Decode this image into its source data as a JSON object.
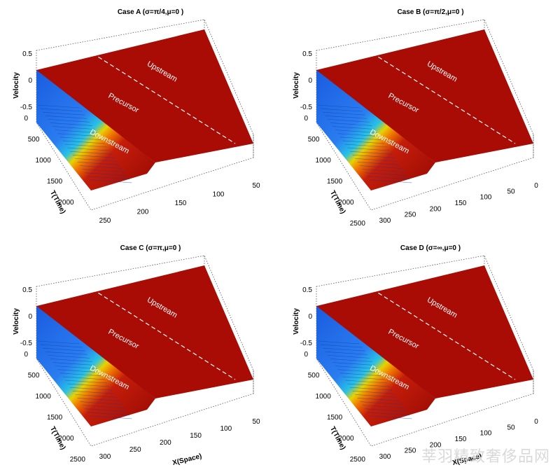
{
  "chart_data": [
    {
      "type": "surface3d",
      "title": "Case A (σ=π/4,μ=0 )",
      "zlabel": "Velocity",
      "ylabel": "T(Time)",
      "xlabel": "",
      "z_ticks": [
        "0.5",
        "0",
        "-0.5"
      ],
      "t_ticks": [
        "0",
        "500",
        "1000",
        "1500",
        "2000"
      ],
      "x_ticks": [
        "250",
        "200",
        "150",
        "100",
        "50"
      ],
      "regions": [
        "Upstream",
        "Precursor",
        "Downstream"
      ],
      "zlim": [
        -0.5,
        0.5
      ]
    },
    {
      "type": "surface3d",
      "title": "Case B (σ=π/2,μ=0 )",
      "zlabel": "Velocity",
      "ylabel": "T(Time)",
      "xlabel": "",
      "z_ticks": [
        "0.5",
        "0",
        "-0.5"
      ],
      "t_ticks": [
        "0",
        "500",
        "1000",
        "1500",
        "2000",
        "2500"
      ],
      "x_ticks": [
        "300",
        "250",
        "200",
        "150",
        "100",
        "50",
        "0"
      ],
      "regions": [
        "Upstream",
        "Precursor",
        "Downstream"
      ],
      "zlim": [
        -0.5,
        0.5
      ]
    },
    {
      "type": "surface3d",
      "title": "Case C (σ=π,μ=0 )",
      "zlabel": "Velocity",
      "ylabel": "T(Time)",
      "xlabel": "X(Space)",
      "z_ticks": [
        "0.5",
        "0",
        "-0.5"
      ],
      "t_ticks": [
        "0",
        "500",
        "1000",
        "1500",
        "2000",
        "2500"
      ],
      "x_ticks": [
        "300",
        "250",
        "200",
        "150",
        "100",
        "50"
      ],
      "regions": [
        "Upstream",
        "Precursor",
        "Downstream"
      ],
      "zlim": [
        -0.5,
        0.5
      ]
    },
    {
      "type": "surface3d",
      "title": "Case D (σ=∞,μ=0 )",
      "zlabel": "Velocity",
      "ylabel": "T(Time)",
      "xlabel": "X(Space)",
      "z_ticks": [
        "0.5",
        "0",
        "-0.5"
      ],
      "t_ticks": [
        "0",
        "500",
        "1000",
        "1500",
        "2000",
        "2500"
      ],
      "x_ticks": [
        "300",
        "250",
        "200",
        "150",
        "100",
        "50",
        "0"
      ],
      "regions": [
        "Upstream",
        "Precursor",
        "Downstream"
      ],
      "zlim": [
        -0.5,
        0.5
      ]
    }
  ],
  "colors": {
    "high": "#9e0a05",
    "mid": "#e8c400",
    "low": "#1f66e5",
    "axis": "#000000"
  },
  "watermark": "莘羽精致奢侈品网"
}
